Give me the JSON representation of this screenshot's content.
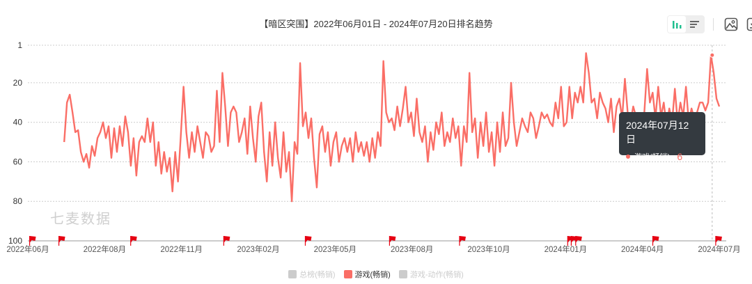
{
  "title": "【暗区突围】2022年06月01日 - 2024年07月20日排名趋势",
  "toolbar": {
    "icons": [
      "bar-chart-icon",
      "list-icon",
      "image-icon",
      "download-icon"
    ]
  },
  "watermark": "七麦数据",
  "tooltip": {
    "date": "2024年07月12日",
    "series": "游戏(畅销)",
    "value": "6"
  },
  "legend": [
    {
      "label": "总榜(畅销)",
      "active": false
    },
    {
      "label": "游戏(畅销)",
      "active": true
    },
    {
      "label": "游戏-动作(畅销)",
      "active": false
    }
  ],
  "colors": {
    "series": "#fa6e66",
    "flag": "#e60012",
    "tooltip_bg": "#343a40",
    "toolbar_active": "#1fbf8f"
  },
  "chart_data": {
    "type": "line",
    "title": "【暗区突围】2022年06月01日 - 2024年07月20日排名趋势",
    "y_inverted": true,
    "ylim": [
      1,
      100
    ],
    "y_ticks": [
      "1",
      "20",
      "40",
      "60",
      "80",
      "100"
    ],
    "x_ticks": [
      "2022年06月",
      "2022年08月",
      "2022年11月",
      "2023年02月",
      "2023年05月",
      "2023年08月",
      "2023年10月",
      "2024年01月",
      "2024年04月",
      "2024年07月"
    ],
    "x_range": [
      "2022-07-12",
      "2024-07-20"
    ],
    "grid": true,
    "legend_placement": "bottom",
    "series": [
      {
        "name": "游戏(畅销)",
        "values": [
          50,
          30,
          26,
          35,
          45,
          44,
          55,
          60,
          56,
          63,
          52,
          57,
          48,
          45,
          40,
          48,
          42,
          58,
          43,
          55,
          42,
          52,
          37,
          45,
          62,
          48,
          67,
          50,
          47,
          50,
          38,
          50,
          40,
          62,
          50,
          66,
          55,
          65,
          58,
          75,
          55,
          70,
          47,
          22,
          45,
          58,
          45,
          55,
          42,
          50,
          58,
          45,
          47,
          55,
          52,
          24,
          50,
          15,
          32,
          52,
          35,
          32,
          35,
          50,
          45,
          38,
          56,
          32,
          48,
          60,
          37,
          30,
          55,
          70,
          45,
          62,
          40,
          58,
          68,
          45,
          65,
          55,
          80,
          50,
          56,
          10,
          42,
          35,
          48,
          38,
          58,
          73,
          46,
          42,
          55,
          45,
          62,
          50,
          45,
          60,
          52,
          48,
          55,
          48,
          60,
          45,
          55,
          50,
          57,
          50,
          60,
          48,
          58,
          45,
          52,
          9,
          35,
          40,
          38,
          44,
          32,
          42,
          33,
          22,
          40,
          35,
          47,
          28,
          45,
          50,
          42,
          60,
          45,
          54,
          40,
          46,
          35,
          52,
          45,
          50,
          38,
          48,
          42,
          62,
          42,
          50,
          15,
          45,
          38,
          58,
          40,
          52,
          35,
          55,
          45,
          62,
          40,
          55,
          35,
          52,
          48,
          20,
          40,
          52,
          45,
          38,
          42,
          45,
          35,
          38,
          48,
          42,
          35,
          38,
          36,
          40,
          42,
          30,
          38,
          22,
          42,
          40,
          22,
          38,
          25,
          30,
          22,
          30,
          5,
          15,
          30,
          28,
          38,
          25,
          30,
          33,
          40,
          28,
          45,
          32,
          28,
          38,
          18,
          35,
          40,
          32,
          37,
          40,
          45,
          35,
          13,
          30,
          25,
          38,
          22,
          37,
          30,
          42,
          33,
          40,
          23,
          40,
          30,
          37,
          22,
          40,
          33,
          38,
          35,
          30,
          30,
          34,
          30,
          6,
          15,
          28,
          32
        ]
      }
    ],
    "events": [
      "2022-06-03",
      "2022-07-06",
      "2022-09-25",
      "2023-01-08",
      "2023-04-10",
      "2023-07-14",
      "2023-10-01",
      "2024-01-31",
      "2024-02-04",
      "2024-02-09",
      "2024-05-06",
      "2024-07-16"
    ],
    "highlight": {
      "date": "2024-07-12",
      "value": 6
    }
  }
}
